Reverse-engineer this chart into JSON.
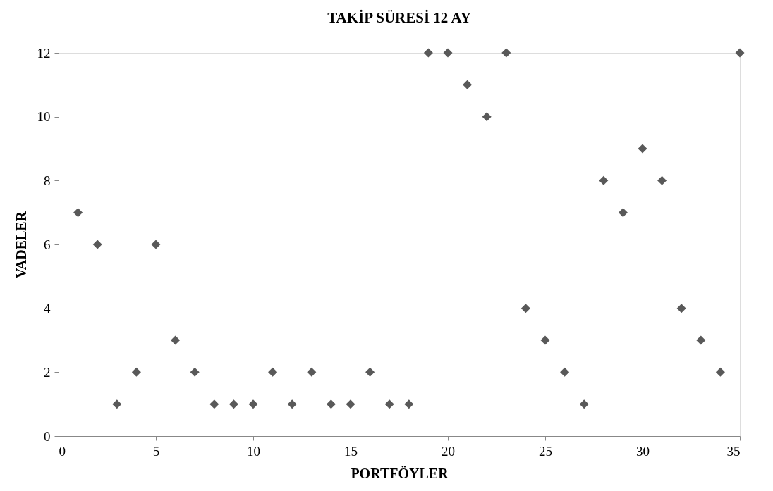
{
  "chart_data": {
    "type": "scatter",
    "title": "TAKİP SÜRESİ 12 AY",
    "xlabel": "PORTFÖYLER",
    "ylabel": "VADELER",
    "x": [
      1,
      2,
      3,
      4,
      5,
      6,
      7,
      8,
      9,
      10,
      11,
      12,
      13,
      14,
      15,
      16,
      17,
      18,
      19,
      20,
      21,
      22,
      23,
      24,
      25,
      26,
      27,
      28,
      29,
      30,
      31,
      32,
      33,
      34,
      35
    ],
    "series": [
      {
        "color": "#595959",
        "values": [
          7,
          6,
          1,
          2,
          6,
          3,
          2,
          1,
          1,
          1,
          2,
          1,
          2,
          1,
          1,
          2,
          1,
          1,
          12,
          12,
          11,
          10,
          12,
          4,
          3,
          2,
          1,
          8,
          7,
          9,
          8,
          4,
          3,
          2,
          12
        ]
      }
    ],
    "xlim": [
      0,
      35
    ],
    "xticks": [
      0,
      5,
      10,
      15,
      20,
      25,
      30,
      35
    ],
    "ylim": [
      0,
      12
    ],
    "yticks": [
      0,
      2,
      4,
      6,
      8,
      10,
      12
    ],
    "marker": "diamond",
    "grid": false
  }
}
